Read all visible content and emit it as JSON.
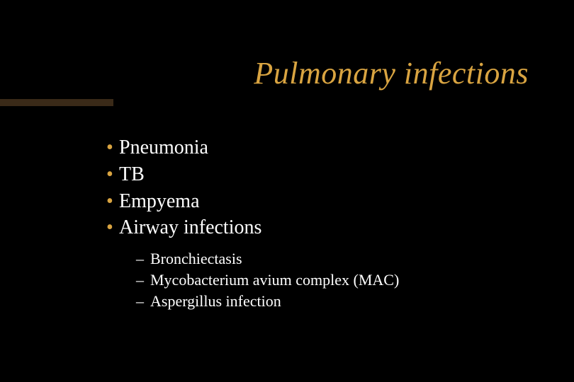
{
  "slide": {
    "title": "Pulmonary infections",
    "title_color": "#d9a441",
    "accent_bar_color": "#3a2a18",
    "background_color": "#000000",
    "bullet_color": "#d9a441",
    "dash_color": "#ffffff",
    "text_color": "#ffffff",
    "title_fontsize": 44,
    "l1_fontsize": 28,
    "l2_fontsize": 22,
    "bullets": [
      {
        "text": "Pneumonia"
      },
      {
        "text": "TB"
      },
      {
        "text": "Empyema"
      },
      {
        "text": "Airway infections"
      }
    ],
    "sub_bullets": [
      {
        "text": "Bronchiectasis",
        "dash": "– "
      },
      {
        "text": "Mycobacterium avium complex (MAC)",
        "dash": "– "
      },
      {
        "text": " Aspergillus infection",
        "dash": "– "
      }
    ]
  }
}
